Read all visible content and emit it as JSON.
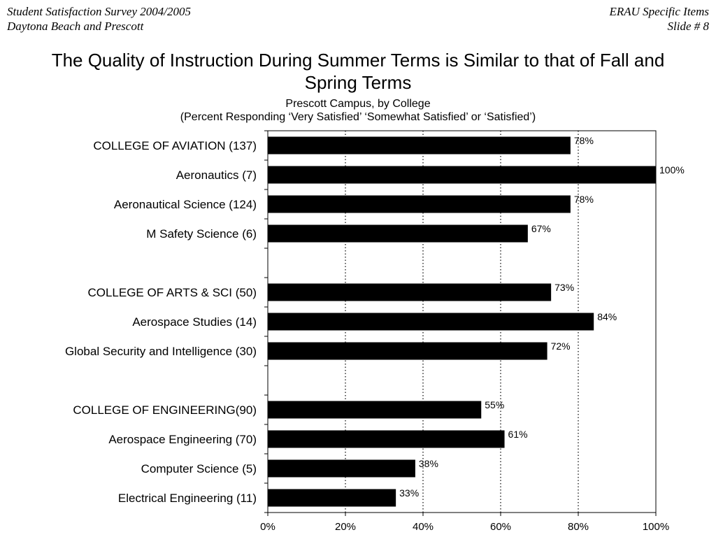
{
  "header": {
    "left_line1": "Student Satisfaction Survey 2004/2005",
    "left_line2": "Daytona Beach and Prescott",
    "right_line1": "ERAU Specific Items",
    "right_line2": "Slide # 8"
  },
  "chart_data": {
    "type": "bar",
    "orientation": "horizontal",
    "title_line1": "The Quality of Instruction During Summer Terms is Similar to that of Fall and",
    "title_line2": "Spring Terms",
    "subtitle": "Prescott Campus, by College",
    "note": "(Percent Responding ‘Very Satisfied’ ‘Somewhat Satisfied’ or ‘Satisfied’)",
    "categories": [
      "COLLEGE OF AVIATION (137)",
      "Aeronautics (7)",
      "Aeronautical Science (124)",
      "M Safety Science (6)",
      "",
      "COLLEGE OF ARTS & SCI (50)",
      "Aerospace Studies (14)",
      "Global Security and Intelligence (30)",
      "",
      "COLLEGE OF ENGINEERING(90)",
      "Aerospace Engineering (70)",
      "Computer Science (5)",
      "Electrical Engineering (11)"
    ],
    "values": [
      78,
      100,
      78,
      67,
      null,
      73,
      84,
      72,
      null,
      55,
      61,
      38,
      33
    ],
    "data_labels": [
      "78%",
      "100%",
      "78%",
      "67%",
      "",
      "73%",
      "84%",
      "72%",
      "",
      "55%",
      "61%",
      "38%",
      "33%"
    ],
    "xlim": [
      0,
      100
    ],
    "xticks": [
      0,
      20,
      40,
      60,
      80,
      100
    ],
    "xtick_labels": [
      "0%",
      "20%",
      "40%",
      "60%",
      "80%",
      "100%"
    ],
    "grid": "vertical dotted",
    "bar_color": "#000000",
    "xlabel": "",
    "ylabel": ""
  }
}
